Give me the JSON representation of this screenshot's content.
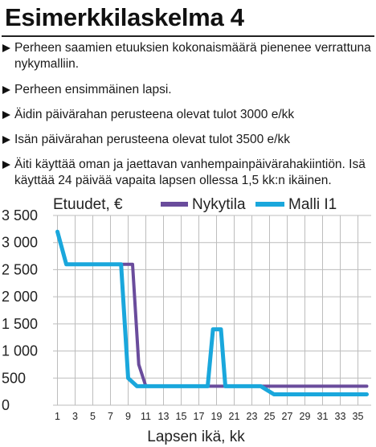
{
  "title": "Esimerkkilaskelma 4",
  "bullets": [
    "Perheen saamien etuuksien kokonaismäärä pienenee verrattuna nykymalliin.",
    "Perheen ensimmäinen lapsi.",
    "Äidin päivärahan perusteena olevat tulot 3000 e/kk",
    "Isän päivärahan perusteena olevat tulot 3500 e/kk",
    "Äiti käyttää oman ja jaettavan vanhempainpäivärahakiintiön. Isä käyttää 24 päivää vapaita lapsen ollessa 1,5 kk:n ikäinen."
  ],
  "chart_data": {
    "type": "line",
    "title": "Etuudet, €",
    "xlabel": "Lapsen ikä, kk",
    "ylabel": "",
    "xlim": [
      0.5,
      36.5
    ],
    "ylim": [
      0,
      3500
    ],
    "x_ticks": [
      1,
      3,
      5,
      7,
      9,
      11,
      13,
      15,
      17,
      19,
      21,
      23,
      25,
      27,
      29,
      31,
      33,
      35
    ],
    "y_ticks": [
      0,
      500,
      1000,
      1500,
      2000,
      2500,
      3000,
      3500
    ],
    "y_tick_labels": [
      "0",
      "500",
      "1 000",
      "1 500",
      "2 000",
      "2 500",
      "3 000",
      "3 500"
    ],
    "grid": true,
    "legend": "top",
    "series": [
      {
        "name": "Nykytila",
        "color": "#6a4c9c",
        "points": [
          [
            2,
            2600
          ],
          [
            8.5,
            2600
          ],
          [
            9.5,
            2600
          ],
          [
            10.2,
            750
          ],
          [
            11,
            350
          ],
          [
            24.5,
            350
          ],
          [
            36,
            350
          ]
        ]
      },
      {
        "name": "Malli I1",
        "color": "#1aa7dc",
        "points": [
          [
            1,
            3200
          ],
          [
            2,
            2600
          ],
          [
            8.2,
            2600
          ],
          [
            9,
            500
          ],
          [
            10,
            350
          ],
          [
            18,
            350
          ],
          [
            18.6,
            1400
          ],
          [
            19.5,
            1400
          ],
          [
            20,
            350
          ],
          [
            24,
            350
          ],
          [
            25.5,
            200
          ],
          [
            36,
            200
          ]
        ]
      }
    ]
  }
}
